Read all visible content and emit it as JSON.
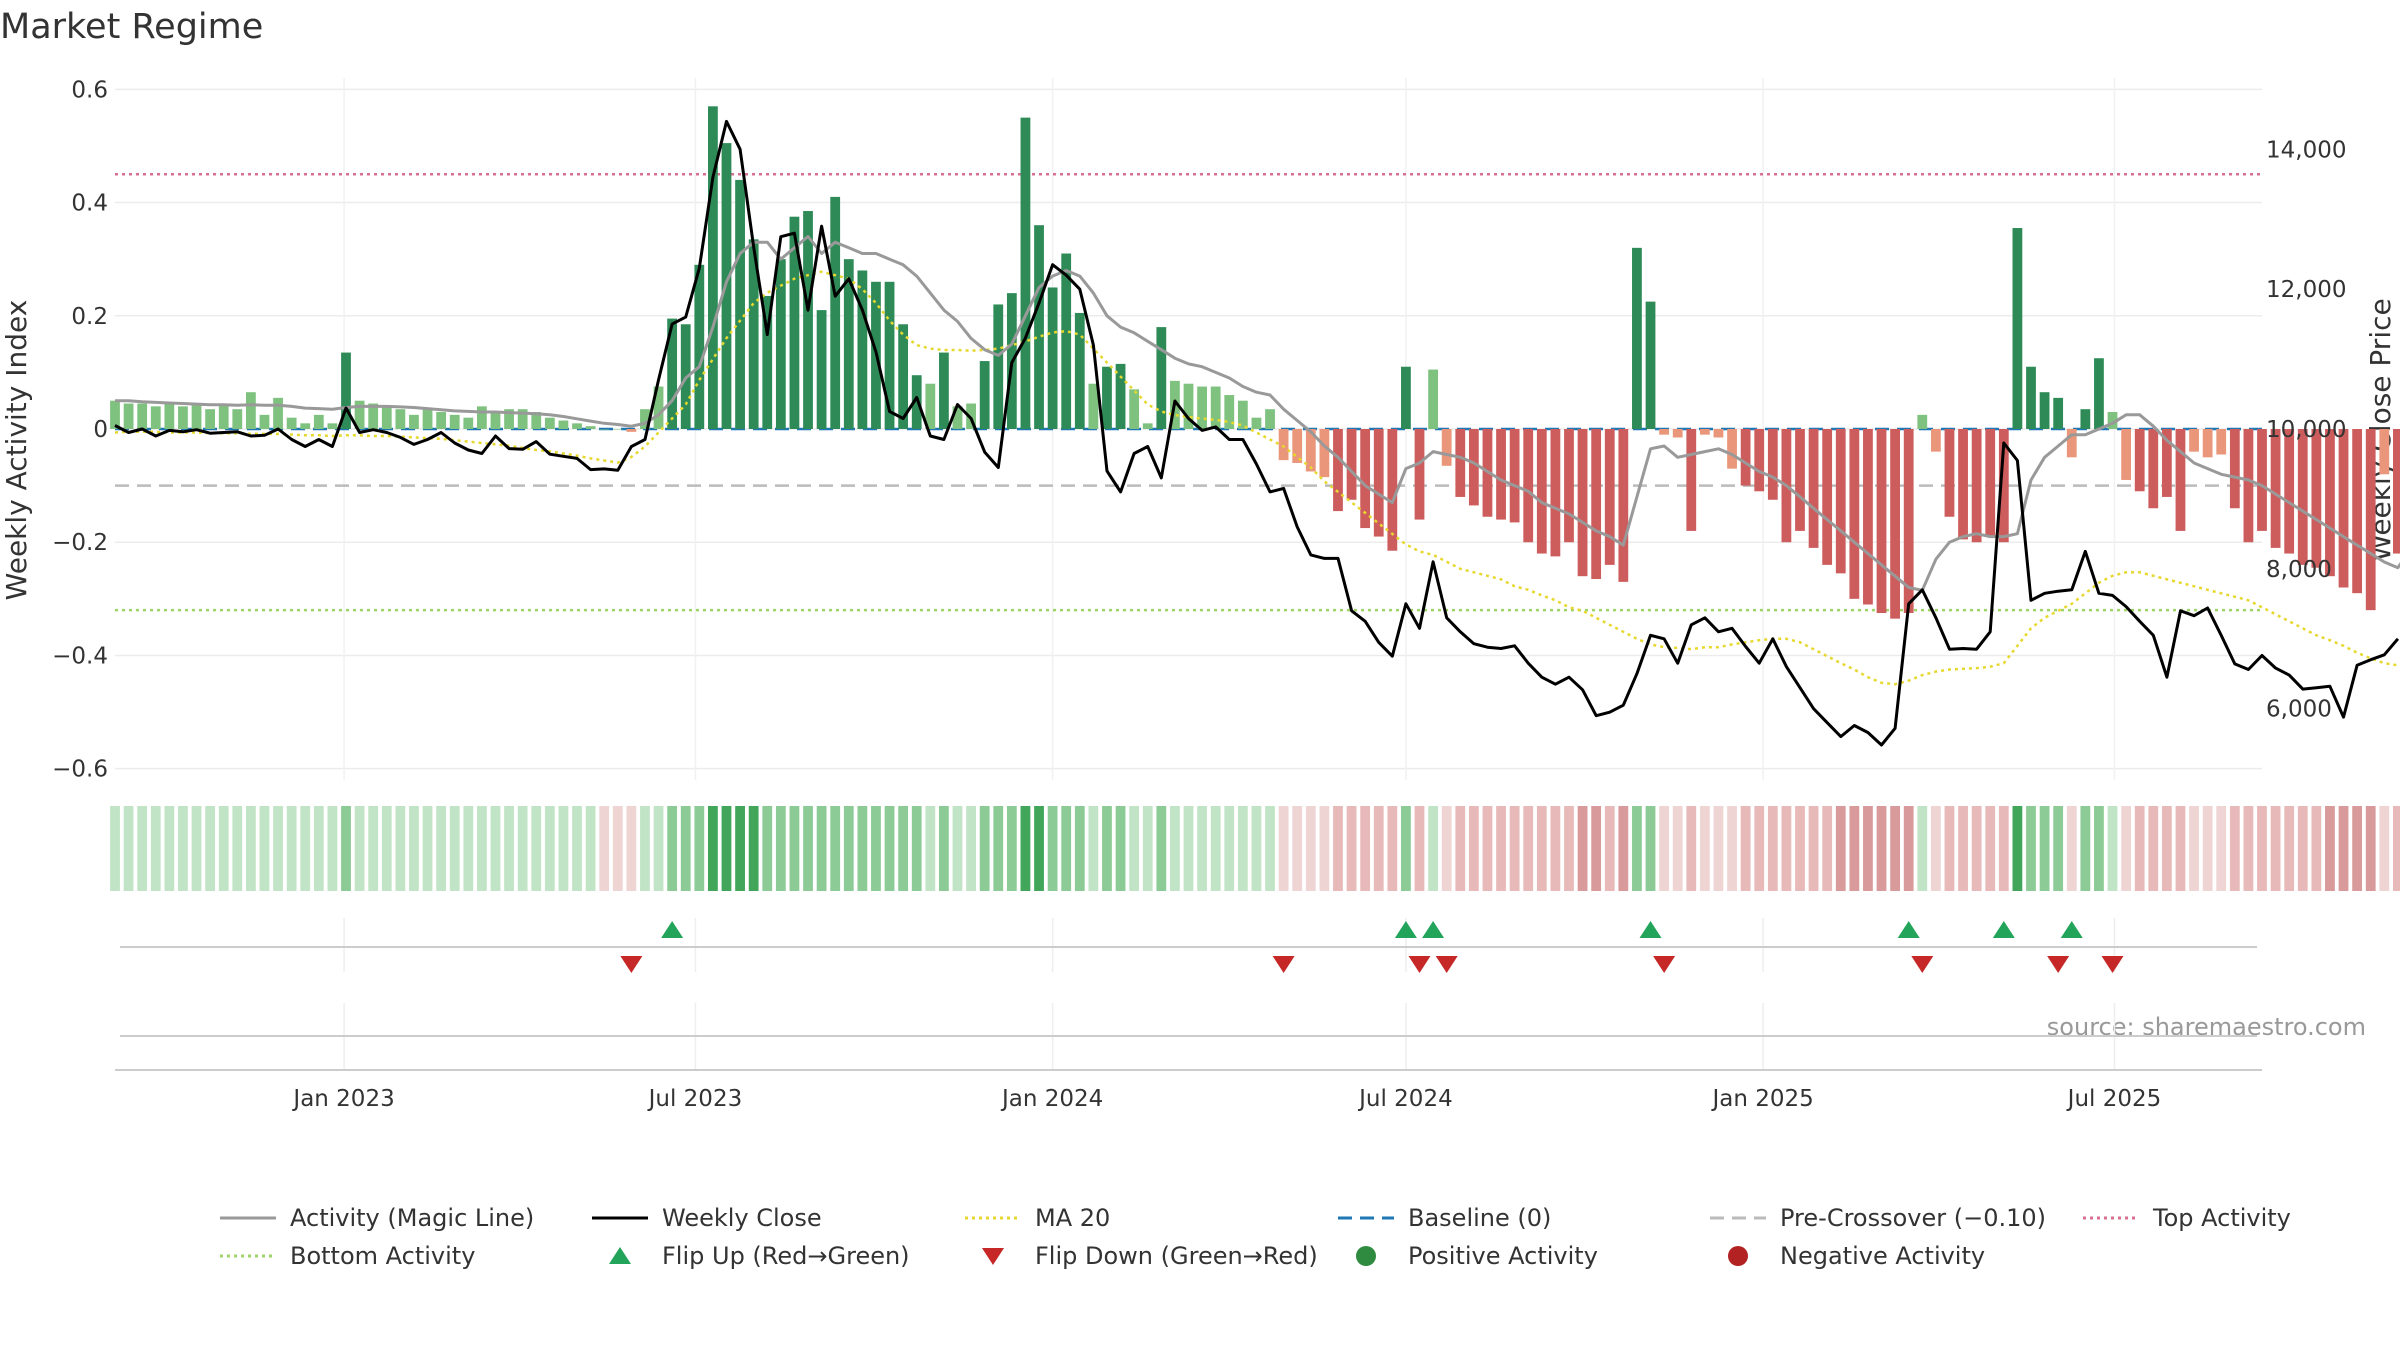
{
  "chart_data": {
    "type": "bar",
    "title": "Market Regime",
    "ylabel_left": "Weekly Activity Index",
    "ylabel_right": "Weekly Close Price",
    "left_axis": {
      "ylim": [
        -0.62,
        0.62
      ],
      "ticks": [
        -0.6,
        -0.4,
        -0.2,
        0,
        0.2,
        0.4,
        0.6
      ],
      "tick_labels": [
        "−0.6",
        "−0.4",
        "−0.2",
        "0",
        "0.2",
        "0.4",
        "0.6"
      ]
    },
    "right_axis": {
      "ylim": [
        4980,
        15020
      ],
      "ticks": [
        6000,
        8000,
        10000,
        12000,
        14000
      ],
      "tick_labels": [
        "6,000",
        "8,000",
        "10,000",
        "12,000",
        "14,000"
      ]
    },
    "x_axis": {
      "range": [
        "2022-09-05",
        "2025-09-15"
      ],
      "ticks": [
        "2023-01-01",
        "2023-07-01",
        "2024-01-01",
        "2024-07-01",
        "2025-01-01",
        "2025-07-01"
      ],
      "tick_labels": [
        "Jan 2023",
        "Jul 2023",
        "Jan 2024",
        "Jul 2024",
        "Jan 2025",
        "Jul 2025"
      ]
    },
    "start_date": "2022-09-05",
    "interval": "weekly",
    "activity": [
      0.05,
      0.045,
      0.045,
      0.04,
      0.045,
      0.04,
      0.045,
      0.035,
      0.045,
      0.035,
      0.065,
      0.025,
      0.055,
      0.02,
      0.01,
      0.025,
      0.01,
      0.135,
      0.05,
      0.045,
      0.04,
      0.035,
      0.025,
      0.035,
      0.03,
      0.025,
      0.02,
      0.04,
      0.03,
      0.035,
      0.035,
      0.03,
      0.02,
      0.015,
      0.01,
      0.005,
      0,
      0,
      -0.005,
      0.035,
      0.075,
      0.195,
      0.185,
      0.29,
      0.57,
      0.505,
      0.44,
      0.335,
      0.235,
      0.3,
      0.375,
      0.385,
      0.21,
      0.41,
      0.3,
      0.28,
      0.26,
      0.26,
      0.185,
      0.095,
      0.08,
      0.135,
      0.04,
      0.045,
      0.12,
      0.22,
      0.24,
      0.55,
      0.36,
      0.25,
      0.31,
      0.205,
      0.08,
      0.11,
      0.115,
      0.07,
      0.01,
      0.18,
      0.085,
      0.08,
      0.075,
      0.075,
      0.06,
      0.05,
      0.02,
      0.035,
      -0.055,
      -0.06,
      -0.075,
      -0.085,
      -0.145,
      -0.125,
      -0.175,
      -0.19,
      -0.215,
      0.11,
      -0.16,
      0.105,
      -0.065,
      -0.12,
      -0.135,
      -0.155,
      -0.16,
      -0.165,
      -0.2,
      -0.22,
      -0.225,
      -0.2,
      -0.26,
      -0.265,
      -0.24,
      -0.27,
      0.32,
      0.225,
      -0.01,
      -0.015,
      -0.18,
      -0.01,
      -0.015,
      -0.07,
      -0.1,
      -0.11,
      -0.125,
      -0.2,
      -0.18,
      -0.21,
      -0.24,
      -0.255,
      -0.3,
      -0.31,
      -0.325,
      -0.335,
      -0.325,
      0.025,
      -0.04,
      -0.155,
      -0.195,
      -0.2,
      -0.19,
      -0.2,
      0.355,
      0.11,
      0.065,
      0.055,
      -0.05,
      0.035,
      0.125,
      0.03,
      -0.09,
      -0.11,
      -0.14,
      -0.12,
      -0.18,
      -0.04,
      -0.05,
      -0.045,
      -0.14,
      -0.2,
      -0.18,
      -0.21,
      -0.22,
      -0.24,
      -0.245,
      -0.26,
      -0.28,
      -0.29,
      -0.32,
      -0.08,
      -0.22,
      -0.205,
      -0.195
    ],
    "magic_line": [
      0.05,
      0.05,
      0.048,
      0.047,
      0.046,
      0.045,
      0.044,
      0.043,
      0.043,
      0.042,
      0.043,
      0.042,
      0.042,
      0.04,
      0.037,
      0.036,
      0.035,
      0.038,
      0.04,
      0.04,
      0.04,
      0.039,
      0.038,
      0.036,
      0.034,
      0.032,
      0.031,
      0.03,
      0.03,
      0.029,
      0.028,
      0.027,
      0.025,
      0.022,
      0.018,
      0.014,
      0.01,
      0.008,
      0.005,
      0.01,
      0.025,
      0.05,
      0.09,
      0.11,
      0.18,
      0.26,
      0.31,
      0.33,
      0.33,
      0.3,
      0.32,
      0.34,
      0.31,
      0.33,
      0.32,
      0.31,
      0.31,
      0.3,
      0.29,
      0.27,
      0.24,
      0.21,
      0.19,
      0.16,
      0.14,
      0.13,
      0.15,
      0.2,
      0.25,
      0.27,
      0.28,
      0.27,
      0.24,
      0.2,
      0.18,
      0.17,
      0.155,
      0.14,
      0.125,
      0.115,
      0.11,
      0.1,
      0.09,
      0.075,
      0.065,
      0.06,
      0.035,
      0.015,
      -0.005,
      -0.03,
      -0.05,
      -0.075,
      -0.1,
      -0.115,
      -0.13,
      -0.07,
      -0.06,
      -0.04,
      -0.045,
      -0.05,
      -0.06,
      -0.075,
      -0.09,
      -0.1,
      -0.11,
      -0.13,
      -0.14,
      -0.15,
      -0.165,
      -0.18,
      -0.19,
      -0.205,
      -0.12,
      -0.035,
      -0.03,
      -0.05,
      -0.045,
      -0.04,
      -0.035,
      -0.045,
      -0.06,
      -0.075,
      -0.085,
      -0.1,
      -0.12,
      -0.14,
      -0.16,
      -0.18,
      -0.2,
      -0.22,
      -0.24,
      -0.26,
      -0.28,
      -0.285,
      -0.23,
      -0.2,
      -0.19,
      -0.185,
      -0.19,
      -0.19,
      -0.185,
      -0.09,
      -0.05,
      -0.03,
      -0.01,
      -0.01,
      0,
      0.01,
      0.025,
      0.025,
      0.005,
      -0.02,
      -0.04,
      -0.06,
      -0.07,
      -0.08,
      -0.085,
      -0.09,
      -0.1,
      -0.115,
      -0.13,
      -0.145,
      -0.16,
      -0.175,
      -0.19,
      -0.205,
      -0.22,
      -0.235,
      -0.245,
      -0.21,
      -0.215,
      -0.21
    ],
    "weekly_close": [
      10050,
      9950,
      10000,
      9900,
      9980,
      9960,
      9990,
      9940,
      9950,
      9960,
      9900,
      9910,
      10000,
      9850,
      9750,
      9850,
      9750,
      10300,
      9950,
      9990,
      9950,
      9880,
      9780,
      9850,
      9950,
      9800,
      9700,
      9650,
      9900,
      9720,
      9710,
      9820,
      9640,
      9610,
      9580,
      9420,
      9430,
      9410,
      9750,
      9850,
      10700,
      11500,
      11600,
      12300,
      13600,
      14400,
      14000,
      12600,
      11350,
      12750,
      12800,
      11700,
      12900,
      11900,
      12150,
      11700,
      11100,
      10250,
      10150,
      10450,
      9900,
      9850,
      10350,
      10150,
      9670,
      9450,
      10950,
      11300,
      11800,
      12350,
      12200,
      12000,
      11200,
      9400,
      9100,
      9650,
      9750,
      9300,
      10400,
      10150,
      9980,
      10030,
      9850,
      9850,
      9500,
      9100,
      9150,
      8600,
      8200,
      8150,
      8150,
      7400,
      7250,
      6950,
      6750,
      7500,
      7150,
      8100,
      7300,
      7100,
      6930,
      6880,
      6860,
      6900,
      6650,
      6450,
      6350,
      6450,
      6270,
      5900,
      5950,
      6050,
      6500,
      7050,
      7000,
      6650,
      7200,
      7300,
      7100,
      7150,
      6890,
      6650,
      7000,
      6600,
      6300,
      6000,
      5800,
      5600,
      5760,
      5660,
      5480,
      5720,
      7500,
      7700,
      7300,
      6850,
      6860,
      6850,
      7100,
      9800,
      9550,
      7550,
      7650,
      7680,
      7700,
      8250,
      7650,
      7620,
      7460,
      7250,
      7050,
      6450,
      7400,
      7330,
      7440,
      7050,
      6640,
      6560,
      6760,
      6580,
      6480,
      6280,
      6300,
      6320,
      5880,
      6620,
      6700,
      6770,
      7000
    ],
    "ma20": [
      9950,
      9960,
      9960,
      9960,
      9950,
      9950,
      9950,
      9940,
      9940,
      9940,
      9930,
      9930,
      9930,
      9920,
      9910,
      9910,
      9900,
      9910,
      9910,
      9900,
      9900,
      9890,
      9880,
      9870,
      9860,
      9840,
      9820,
      9800,
      9780,
      9760,
      9730,
      9700,
      9680,
      9650,
      9620,
      9580,
      9550,
      9520,
      9600,
      9750,
      9950,
      10150,
      10350,
      10700,
      11000,
      11300,
      11550,
      11800,
      11950,
      12050,
      12150,
      12200,
      12250,
      12200,
      12150,
      12000,
      11800,
      11550,
      11350,
      11200,
      11150,
      11130,
      11130,
      11120,
      11130,
      11150,
      11200,
      11250,
      11320,
      11380,
      11400,
      11350,
      11150,
      10950,
      10750,
      10550,
      10350,
      10250,
      10200,
      10170,
      10150,
      10130,
      10100,
      10050,
      9950,
      9850,
      9750,
      9600,
      9450,
      9250,
      9100,
      8950,
      8800,
      8650,
      8500,
      8350,
      8250,
      8200,
      8100,
      8000,
      7950,
      7900,
      7850,
      7750,
      7700,
      7620,
      7550,
      7450,
      7400,
      7300,
      7200,
      7100,
      7000,
      6920,
      6880,
      6870,
      6850,
      6880,
      6880,
      6920,
      6950,
      6980,
      7000,
      7000,
      6950,
      6850,
      6750,
      6650,
      6560,
      6450,
      6370,
      6350,
      6400,
      6480,
      6530,
      6560,
      6570,
      6580,
      6600,
      6650,
      6900,
      7150,
      7300,
      7400,
      7500,
      7650,
      7800,
      7900,
      7950,
      7950,
      7900,
      7850,
      7800,
      7750,
      7700,
      7650,
      7600,
      7550,
      7450,
      7350,
      7250,
      7150,
      7050,
      6980,
      6900,
      6800,
      6720,
      6650,
      6620,
      6580,
      6580
    ],
    "regime_strip": [
      1,
      1,
      1,
      1,
      1,
      1,
      1,
      1,
      1,
      1,
      1,
      1,
      1,
      1,
      1,
      1,
      1,
      2,
      1,
      1,
      1,
      1,
      1,
      1,
      1,
      1,
      1,
      1,
      1,
      1,
      1,
      1,
      1,
      1,
      1,
      1,
      -1,
      -1,
      -1,
      1,
      1,
      2,
      2,
      2,
      3,
      3,
      3,
      3,
      2,
      2,
      2,
      2,
      2,
      2,
      2,
      2,
      2,
      2,
      2,
      2,
      1,
      2,
      1,
      1,
      2,
      2,
      2,
      3,
      3,
      2,
      2,
      2,
      1,
      2,
      2,
      1,
      1,
      2,
      1,
      1,
      1,
      1,
      1,
      1,
      1,
      1,
      -1,
      -1,
      -1,
      -1,
      -2,
      -2,
      -2,
      -2,
      -2,
      2,
      -2,
      1,
      -1,
      -2,
      -2,
      -2,
      -2,
      -2,
      -2,
      -2,
      -2,
      -2,
      -3,
      -3,
      -2,
      -3,
      2,
      2,
      -1,
      -1,
      -2,
      -1,
      -1,
      -1,
      -2,
      -2,
      -2,
      -2,
      -2,
      -2,
      -2,
      -3,
      -3,
      -3,
      -3,
      -3,
      -3,
      1,
      -1,
      -2,
      -2,
      -2,
      -2,
      -2,
      3,
      2,
      2,
      2,
      -1,
      2,
      2,
      1,
      -1,
      -2,
      -2,
      -2,
      -2,
      -1,
      -1,
      -1,
      -2,
      -2,
      -2,
      -2,
      -2,
      -2,
      -2,
      -3,
      -3,
      -3,
      -3,
      -1,
      -2,
      -2,
      -2
    ],
    "flip_up_weeks": [
      41,
      95,
      97,
      113,
      132,
      139,
      144
    ],
    "flip_down_weeks": [
      38,
      86,
      96,
      98,
      114,
      133,
      143,
      147
    ],
    "reference_lines": [
      {
        "name": "Baseline (0)",
        "value": 0,
        "axis": "left"
      },
      {
        "name": "Pre-Crossover (−0.10)",
        "value": -0.1,
        "axis": "left"
      },
      {
        "name": "Top Activity",
        "value": 0.45,
        "axis": "left"
      },
      {
        "name": "Bottom Activity",
        "value": -0.32,
        "axis": "left"
      }
    ],
    "grid": true,
    "legend_position": "bottom"
  },
  "colors": {
    "pos_strong": "#2e8b57",
    "pos_light": "#7fc27f",
    "neg_strong": "#cd5c5c",
    "neg_light": "#e9967a",
    "magic_line": "#999999",
    "weekly_close": "#000000",
    "ma20": "#e6d82e",
    "baseline": "#1f77b4",
    "pre_crossover": "#bbbbbb",
    "top_line": "#d8708f",
    "bottom_line": "#9ed46a",
    "flip_up": "#22a45a",
    "flip_down": "#c62828",
    "positive_dot": "#2e8b40",
    "negative_dot": "#b22222"
  },
  "legend": [
    {
      "label": "Activity (Magic Line)",
      "kind": "line",
      "color": "#999999",
      "dash": ""
    },
    {
      "label": "Weekly Close",
      "kind": "line",
      "color": "#000000",
      "dash": ""
    },
    {
      "label": "MA 20",
      "kind": "line",
      "color": "#e6d82e",
      "dash": "3,4"
    },
    {
      "label": "Baseline (0)",
      "kind": "line",
      "color": "#1f77b4",
      "dash": "14,8"
    },
    {
      "label": "Pre-Crossover (−0.10)",
      "kind": "line",
      "color": "#bbbbbb",
      "dash": "14,8"
    },
    {
      "label": "Top Activity",
      "kind": "line",
      "color": "#d8708f",
      "dash": "3,4"
    },
    {
      "label": "Bottom Activity",
      "kind": "line",
      "color": "#9ed46a",
      "dash": "3,4"
    },
    {
      "label": "Flip Up (Red→Green)",
      "kind": "triangle-up",
      "color": "#22a45a",
      "dash": ""
    },
    {
      "label": "Flip Down (Green→Red)",
      "kind": "triangle-down",
      "color": "#c62828",
      "dash": ""
    },
    {
      "label": "Positive Activity",
      "kind": "dot",
      "color": "#2e8b40",
      "dash": ""
    },
    {
      "label": "Negative Activity",
      "kind": "dot",
      "color": "#b22222",
      "dash": ""
    }
  ],
  "source_text": "source: sharemaestro.com"
}
